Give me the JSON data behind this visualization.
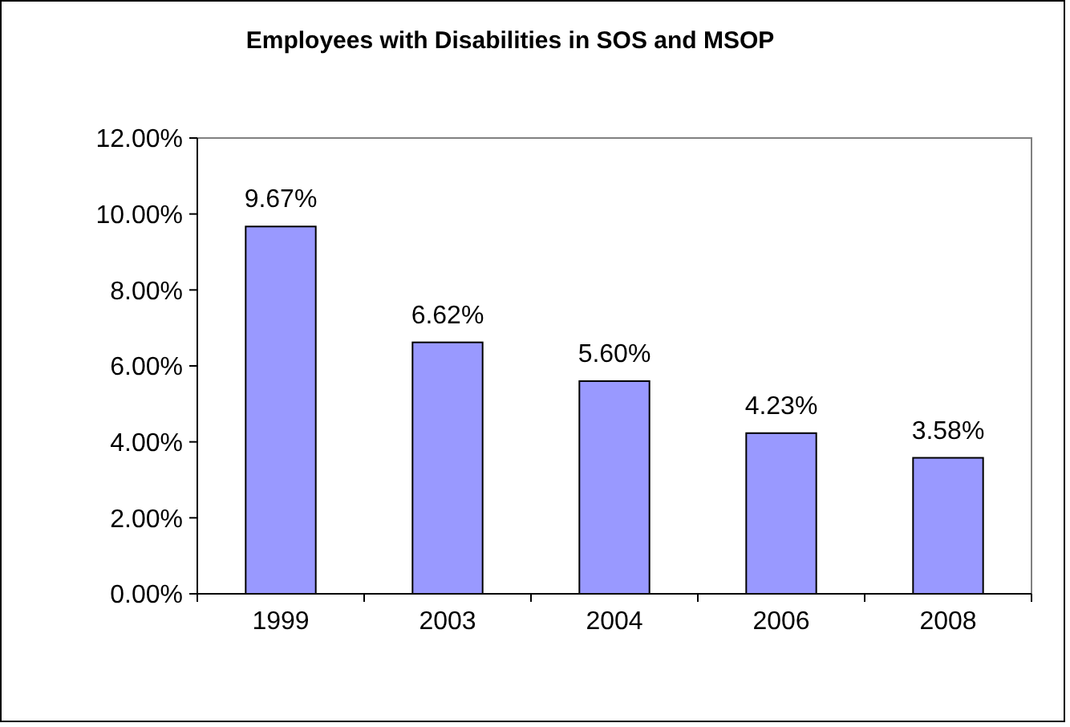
{
  "chart_data": {
    "type": "bar",
    "title": "Employees with Disabilities in SOS and MSOP",
    "categories": [
      "1999",
      "2003",
      "2004",
      "2006",
      "2008"
    ],
    "values": [
      9.67,
      6.62,
      5.6,
      4.23,
      3.58
    ],
    "value_labels": [
      "9.67%",
      "6.62%",
      "5.60%",
      "4.23%",
      "3.58%"
    ],
    "color": "#9999ff",
    "ylim": [
      0,
      12
    ],
    "yticks": [
      {
        "value": 0,
        "label": "0.00%"
      },
      {
        "value": 2,
        "label": "2.00%"
      },
      {
        "value": 4,
        "label": "4.00%"
      },
      {
        "value": 6,
        "label": "6.00%"
      },
      {
        "value": 8,
        "label": "8.00%"
      },
      {
        "value": 10,
        "label": "10.00%"
      },
      {
        "value": 12,
        "label": "12.00%"
      }
    ],
    "grid": false
  }
}
